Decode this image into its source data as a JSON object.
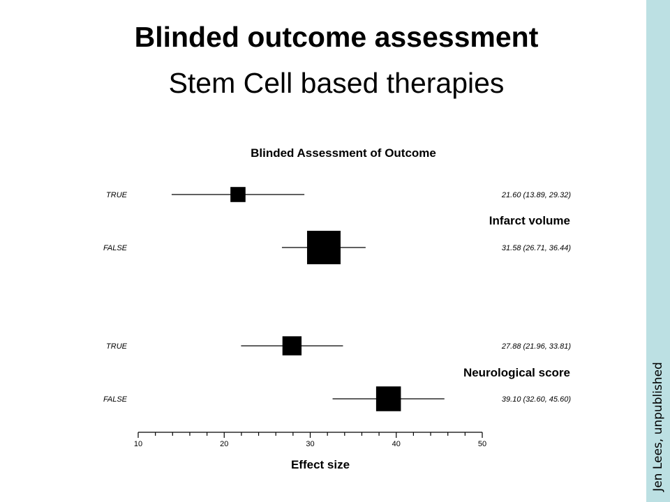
{
  "slide": {
    "title": "Blinded outcome assessment",
    "subtitle": "Stem Cell based therapies",
    "credit": "Jen Lees, unpublished"
  },
  "chart_data": {
    "type": "forest",
    "title": "Blinded Assessment of Outcome",
    "xlabel": "Effect size",
    "xlim": [
      10,
      50
    ],
    "x_major_ticks": [
      10,
      20,
      30,
      40,
      50
    ],
    "x_tick_labels": [
      "10",
      "20",
      "30",
      "40",
      "50"
    ],
    "minor_tick_step": 2,
    "groups": [
      {
        "name": "Infarct volume",
        "rows": [
          {
            "label": "TRUE",
            "estimate": 21.6,
            "lower": 13.89,
            "upper": 29.32,
            "text": "21.60 (13.89, 29.32)",
            "weight": 0.45
          },
          {
            "label": "FALSE",
            "estimate": 31.58,
            "lower": 26.71,
            "upper": 36.44,
            "text": "31.58 (26.71, 36.44)",
            "weight": 1.0
          }
        ]
      },
      {
        "name": "Neurological score",
        "rows": [
          {
            "label": "TRUE",
            "estimate": 27.88,
            "lower": 21.96,
            "upper": 33.81,
            "text": "27.88 (21.96, 33.81)",
            "weight": 0.57
          },
          {
            "label": "FALSE",
            "estimate": 39.1,
            "lower": 32.6,
            "upper": 45.6,
            "text": "39.10 (32.60, 45.60)",
            "weight": 0.74
          }
        ]
      }
    ],
    "colors": {
      "marker": "#000000",
      "sidebar": "#bce0e3"
    }
  }
}
